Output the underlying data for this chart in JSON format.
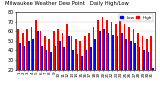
{
  "title": "Milwaukee Weather Dew Point",
  "subtitle": "Daily High/Low",
  "high_values": [
    62,
    58,
    62,
    65,
    72,
    60,
    55,
    52,
    60,
    62,
    58,
    68,
    55,
    52,
    50,
    55,
    58,
    65,
    72,
    75,
    72,
    70,
    68,
    72,
    68,
    65,
    62,
    58,
    55,
    52,
    55
  ],
  "low_values": [
    48,
    45,
    50,
    52,
    60,
    45,
    40,
    38,
    45,
    50,
    44,
    55,
    40,
    36,
    34,
    40,
    44,
    52,
    60,
    62,
    58,
    56,
    55,
    58,
    52,
    50,
    48,
    44,
    40,
    38,
    22
  ],
  "bar_width": 0.38,
  "high_color": "#ff0000",
  "low_color": "#0000ff",
  "bg_color": "#ffffff",
  "ylim": [
    20,
    80
  ],
  "ytick_values": [
    20,
    30,
    40,
    50,
    60,
    70,
    80
  ],
  "ytick_labels": [
    "20",
    "30",
    "40",
    "50",
    "60",
    "70",
    "80"
  ],
  "ylabel_fontsize": 3.5,
  "xlabel_fontsize": 3.0,
  "title_fontsize": 3.8,
  "legend_fontsize": 3.0,
  "grid_color": "#cccccc",
  "legend_labels": [
    "High",
    "Low"
  ]
}
